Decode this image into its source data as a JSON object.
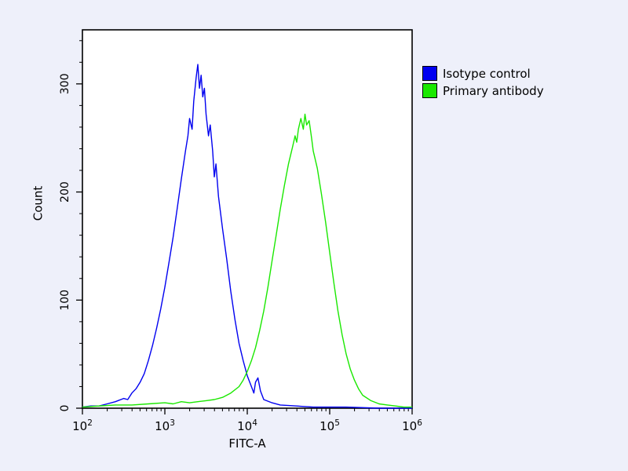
{
  "background_color": "#eef0fa",
  "plot": {
    "bg": "#ffffff",
    "border_color": "#000000"
  },
  "legend": {
    "items": [
      {
        "label": "Isotype control",
        "color": "#0000f0"
      },
      {
        "label": "Primary antibody",
        "color": "#1ae800"
      }
    ]
  },
  "chart_data": {
    "type": "line",
    "title": "",
    "xlabel": "FITC-A",
    "ylabel": "Count",
    "x_scale": "log10",
    "xlim": [
      2,
      6
    ],
    "ylim": [
      0,
      350
    ],
    "x_decades": [
      2,
      3,
      4,
      5,
      6
    ],
    "y_major_ticks": [
      0,
      100,
      200,
      300
    ],
    "y_minor_step": 20,
    "grid": false,
    "legend_position": "top-right",
    "series": [
      {
        "name": "Isotype control",
        "color": "#0000f0",
        "points": [
          [
            2.0,
            1
          ],
          [
            2.1,
            2
          ],
          [
            2.2,
            2
          ],
          [
            2.3,
            4
          ],
          [
            2.4,
            6
          ],
          [
            2.5,
            9
          ],
          [
            2.55,
            8
          ],
          [
            2.6,
            14
          ],
          [
            2.65,
            18
          ],
          [
            2.7,
            24
          ],
          [
            2.75,
            32
          ],
          [
            2.8,
            44
          ],
          [
            2.85,
            58
          ],
          [
            2.9,
            74
          ],
          [
            2.95,
            92
          ],
          [
            3.0,
            112
          ],
          [
            3.05,
            135
          ],
          [
            3.1,
            158
          ],
          [
            3.15,
            185
          ],
          [
            3.2,
            212
          ],
          [
            3.25,
            238
          ],
          [
            3.28,
            252
          ],
          [
            3.3,
            268
          ],
          [
            3.33,
            258
          ],
          [
            3.35,
            284
          ],
          [
            3.38,
            306
          ],
          [
            3.4,
            318
          ],
          [
            3.42,
            296
          ],
          [
            3.44,
            308
          ],
          [
            3.46,
            288
          ],
          [
            3.48,
            296
          ],
          [
            3.5,
            272
          ],
          [
            3.53,
            252
          ],
          [
            3.55,
            262
          ],
          [
            3.58,
            238
          ],
          [
            3.6,
            214
          ],
          [
            3.62,
            226
          ],
          [
            3.65,
            196
          ],
          [
            3.7,
            166
          ],
          [
            3.75,
            138
          ],
          [
            3.8,
            108
          ],
          [
            3.85,
            82
          ],
          [
            3.9,
            60
          ],
          [
            3.95,
            44
          ],
          [
            4.0,
            30
          ],
          [
            4.05,
            20
          ],
          [
            4.08,
            14
          ],
          [
            4.1,
            24
          ],
          [
            4.13,
            28
          ],
          [
            4.16,
            16
          ],
          [
            4.2,
            8
          ],
          [
            4.3,
            5
          ],
          [
            4.4,
            3
          ],
          [
            4.6,
            2
          ],
          [
            4.8,
            1
          ],
          [
            5.2,
            1
          ],
          [
            5.6,
            0
          ],
          [
            6.0,
            0
          ]
        ]
      },
      {
        "name": "Primary antibody",
        "color": "#1ae800",
        "points": [
          [
            2.0,
            1
          ],
          [
            2.2,
            2
          ],
          [
            2.4,
            3
          ],
          [
            2.6,
            3
          ],
          [
            2.8,
            4
          ],
          [
            3.0,
            5
          ],
          [
            3.1,
            4
          ],
          [
            3.2,
            6
          ],
          [
            3.3,
            5
          ],
          [
            3.4,
            6
          ],
          [
            3.5,
            7
          ],
          [
            3.6,
            8
          ],
          [
            3.7,
            10
          ],
          [
            3.8,
            14
          ],
          [
            3.9,
            20
          ],
          [
            3.95,
            26
          ],
          [
            4.0,
            34
          ],
          [
            4.05,
            44
          ],
          [
            4.1,
            56
          ],
          [
            4.15,
            72
          ],
          [
            4.2,
            90
          ],
          [
            4.25,
            112
          ],
          [
            4.3,
            136
          ],
          [
            4.35,
            160
          ],
          [
            4.4,
            184
          ],
          [
            4.45,
            206
          ],
          [
            4.5,
            226
          ],
          [
            4.55,
            242
          ],
          [
            4.58,
            252
          ],
          [
            4.6,
            246
          ],
          [
            4.62,
            258
          ],
          [
            4.65,
            268
          ],
          [
            4.68,
            258
          ],
          [
            4.7,
            272
          ],
          [
            4.72,
            262
          ],
          [
            4.75,
            266
          ],
          [
            4.78,
            250
          ],
          [
            4.8,
            238
          ],
          [
            4.85,
            222
          ],
          [
            4.9,
            198
          ],
          [
            4.95,
            172
          ],
          [
            5.0,
            144
          ],
          [
            5.05,
            116
          ],
          [
            5.1,
            90
          ],
          [
            5.15,
            68
          ],
          [
            5.2,
            50
          ],
          [
            5.25,
            36
          ],
          [
            5.3,
            26
          ],
          [
            5.35,
            18
          ],
          [
            5.4,
            12
          ],
          [
            5.5,
            7
          ],
          [
            5.6,
            4
          ],
          [
            5.7,
            3
          ],
          [
            5.8,
            2
          ],
          [
            5.9,
            1
          ],
          [
            6.0,
            1
          ]
        ]
      }
    ]
  }
}
